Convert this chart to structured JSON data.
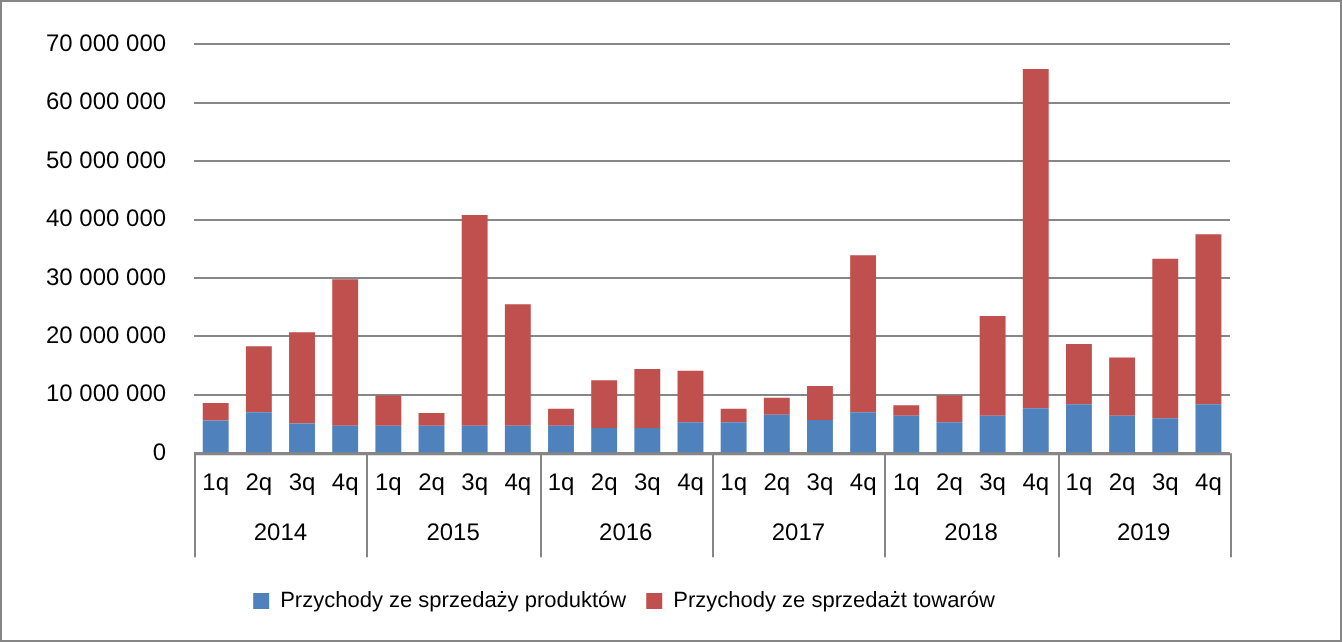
{
  "chart_data": {
    "type": "bar",
    "stacked": true,
    "categories": [
      "1q",
      "2q",
      "3q",
      "4q",
      "1q",
      "2q",
      "3q",
      "4q",
      "1q",
      "2q",
      "3q",
      "4q",
      "1q",
      "2q",
      "3q",
      "4q",
      "1q",
      "2q",
      "3q",
      "4q",
      "1q",
      "2q",
      "3q",
      "4q"
    ],
    "series": [
      {
        "name": "Przychody ze sprzedaży produktów",
        "color": "#4f81bd",
        "values": [
          5600000,
          7000000,
          5100000,
          4700000,
          4700000,
          4700000,
          4700000,
          4700000,
          4700000,
          4300000,
          4300000,
          5300000,
          5300000,
          6600000,
          5700000,
          7000000,
          6400000,
          5300000,
          6400000,
          7700000,
          8400000,
          6400000,
          6000000,
          8400000
        ]
      },
      {
        "name": "Przychody ze sprzedażt towarów",
        "color": "#c0504d",
        "values": [
          3000000,
          11300000,
          15600000,
          25100000,
          5200000,
          2200000,
          36100000,
          20800000,
          2900000,
          8200000,
          10100000,
          8800000,
          2300000,
          2900000,
          5800000,
          26900000,
          1800000,
          4600000,
          17100000,
          58100000,
          10300000,
          10000000,
          27300000,
          29100000
        ]
      }
    ],
    "annotations": [
      "2014",
      "2015",
      "2016",
      "2017",
      "2018",
      "2019"
    ],
    "ylim": [
      0,
      70000000
    ],
    "yticks": [
      {
        "value": 0,
        "label": "0"
      },
      {
        "value": 10000000,
        "label": "10 000 000"
      },
      {
        "value": 20000000,
        "label": "20 000 000"
      },
      {
        "value": 30000000,
        "label": "30 000 000"
      },
      {
        "value": 40000000,
        "label": "40 000 000"
      },
      {
        "value": 50000000,
        "label": "50 000 000"
      },
      {
        "value": 60000000,
        "label": "60 000 000"
      },
      {
        "value": 70000000,
        "label": "70 000 000"
      }
    ],
    "grid": "y",
    "legend": "bottom"
  }
}
